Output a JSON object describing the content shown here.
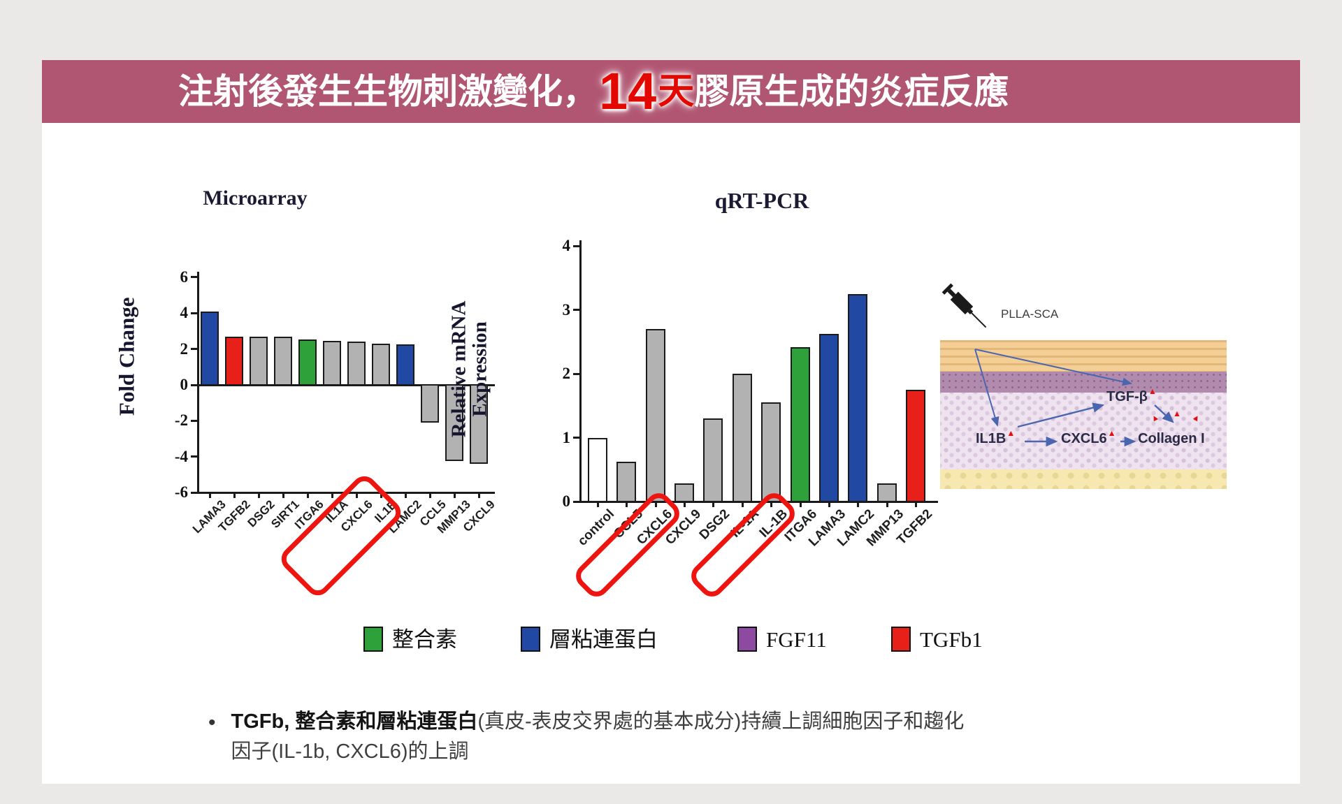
{
  "colors": {
    "banner_bg": "#b15672",
    "highlight_red": "#e20800",
    "bar_blue": "#2148a2",
    "bar_red": "#e8201a",
    "bar_green": "#2fa13a",
    "bar_gray": "#b2b2b2",
    "bar_white": "#ffffff",
    "legend_purple": "#8c4ba0",
    "highlight_box_red": "#ee1410"
  },
  "header": {
    "pre": "注射後發生生物刺激變化，",
    "highlight_number": "14",
    "highlight_unit": "天",
    "post": "膠原生成的炎症反應"
  },
  "chart_data": [
    {
      "type": "bar",
      "title": "Microarray",
      "ylabel_lines": [
        "Fold Change"
      ],
      "ylim": [
        -6,
        6
      ],
      "yticks": [
        6,
        4,
        2,
        0,
        -2,
        -4,
        -6
      ],
      "categories": [
        "LAMA3",
        "TGFB2",
        "DSG2",
        "SIRT1",
        "ITGA6",
        "IL1A",
        "CXCL6",
        "IL1B",
        "LAMC2",
        "CCL5",
        "MMP13",
        "CXCL9"
      ],
      "values": [
        4.1,
        2.7,
        2.7,
        2.7,
        2.55,
        2.45,
        2.4,
        2.3,
        2.25,
        -2.1,
        -4.25,
        -4.4
      ],
      "colors": [
        "blue",
        "red",
        "gray",
        "gray",
        "green",
        "gray",
        "gray",
        "gray",
        "blue",
        "gray",
        "gray",
        "gray"
      ],
      "highlight_groups": [
        [
          "CXCL6",
          "IL1B"
        ]
      ],
      "grid": false,
      "legend_position": "none"
    },
    {
      "type": "bar",
      "title": "qRT-PCR",
      "ylabel_lines": [
        "Relative mRNA",
        "Expression"
      ],
      "ylim": [
        0,
        4
      ],
      "yticks": [
        4,
        3,
        2,
        1,
        0
      ],
      "categories": [
        "control",
        "CCL5",
        "CXCL6",
        "CXCL9",
        "DSG2",
        "IL-1A",
        "IL-1B",
        "ITGA6",
        "LAMA3",
        "LAMC2",
        "MMP13",
        "TGFB2"
      ],
      "values": [
        1.0,
        0.62,
        2.7,
        0.28,
        1.3,
        2.0,
        1.55,
        2.42,
        2.62,
        3.25,
        0.28,
        1.75
      ],
      "colors": [
        "white",
        "gray",
        "gray",
        "gray",
        "gray",
        "gray",
        "gray",
        "green",
        "blue",
        "blue",
        "gray",
        "red"
      ],
      "highlight_groups": [
        [
          "CXCL6"
        ],
        [
          "IL-1B"
        ]
      ],
      "grid": false,
      "legend_position": "below"
    }
  ],
  "legend": [
    {
      "label": "整合素",
      "color": "#2fa13a"
    },
    {
      "label": "層粘連蛋白",
      "color": "#2148a2"
    },
    {
      "label": "FGF11",
      "color": "#8c4ba0"
    },
    {
      "label": "TGFb1",
      "color": "#e8201a"
    }
  ],
  "diagram": {
    "injection_label": "PLLA-SCA",
    "tgfb": "TGF-β",
    "il1b": "IL1B",
    "cxcl6": "CXCL6",
    "collagen": "Collagen I"
  },
  "bullet": {
    "marker": "•",
    "bold": "TGFb, 整合素和層粘連蛋白",
    "line1_rest": "(真皮-表皮交界處的基本成分)持續上調細胞因子和趨化",
    "line2": "因子(IL-1b, CXCL6)的上調"
  }
}
